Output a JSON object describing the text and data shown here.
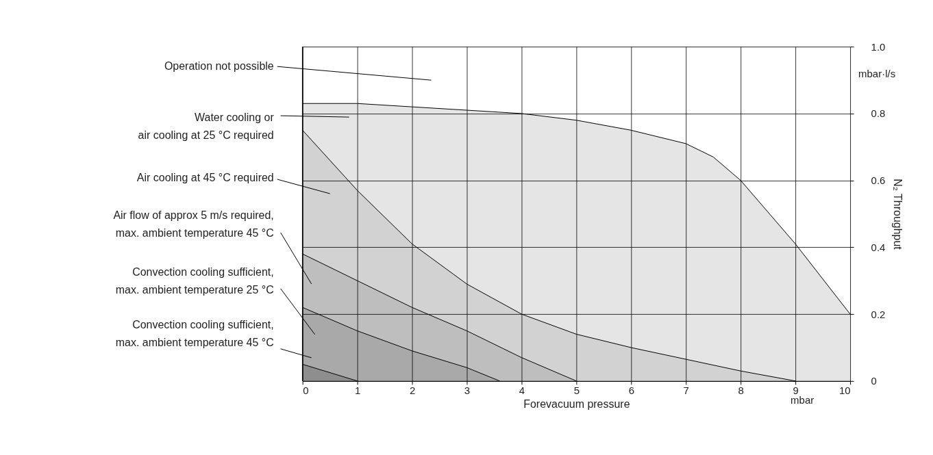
{
  "chart_data": {
    "type": "area",
    "xlabel": "Forevacuum pressure",
    "ylabel": "N₂ Throughput",
    "xlim": [
      0,
      10
    ],
    "xticks": [
      0,
      1,
      2,
      3,
      4,
      5,
      6,
      7,
      8,
      9,
      10
    ],
    "ylim": [
      0,
      1
    ],
    "yticks": [
      0,
      0.2,
      0.4,
      0.6,
      0.8,
      {
        "value": 1,
        "label": "1.0"
      }
    ],
    "grid": true,
    "series": [
      {
        "color": "#e5e5e5",
        "x": [
          0,
          1,
          2,
          3,
          4,
          5,
          6,
          7,
          7.5,
          8,
          9,
          10
        ],
        "values": [
          0.83,
          0.83,
          0.82,
          0.81,
          0.8,
          0.78,
          0.75,
          0.71,
          0.67,
          0.6,
          0.41,
          0.2
        ]
      },
      {
        "color": "#d2d2d2",
        "x": [
          0,
          1,
          2,
          3,
          4,
          5,
          6,
          7,
          8,
          9
        ],
        "values": [
          0.75,
          0.57,
          0.41,
          0.29,
          0.2,
          0.14,
          0.1,
          0.065,
          0.03,
          0
        ]
      },
      {
        "color": "#bebebe",
        "x": [
          0,
          1,
          2,
          3,
          4,
          5
        ],
        "values": [
          0.38,
          0.3,
          0.22,
          0.15,
          0.07,
          0
        ]
      },
      {
        "color": "#a9a9a9",
        "x": [
          0,
          1,
          2,
          3,
          3.6
        ],
        "values": [
          0.22,
          0.15,
          0.09,
          0.04,
          0
        ]
      },
      {
        "color": "#8e8e8e",
        "x": [
          0,
          1
        ],
        "values": [
          0.05,
          0
        ]
      }
    ],
    "annotations": [
      "Operation not possible",
      "Water cooling or\nair cooling at 25 °C required",
      "Air cooling at 45 °C required",
      "Air flow of approx 5 m/s required,\nmax. ambient temperature 45 °C",
      "Convection cooling sufficient,\nmax. ambient temperature 25 °C",
      "Convection cooling sufficient,\nmax. ambient temperature 45 °C",
      "mbar·l/s",
      "mbar"
    ]
  }
}
